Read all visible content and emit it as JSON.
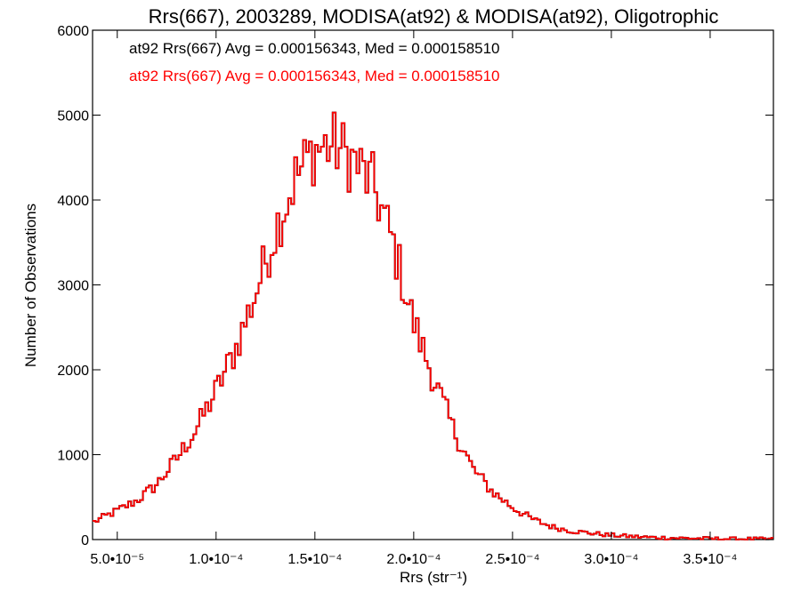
{
  "chart_data": {
    "type": "histogram",
    "title": "Rrs(667), 2003289, MODISA(at92) & MODISA(at92), Oligotrophic",
    "xlabel": "Rrs (str⁻¹)",
    "ylabel": "Number of Observations",
    "xlim": [
      3.75e-05,
      0.000382
    ],
    "ylim": [
      0,
      6000
    ],
    "x_ticks": [
      {
        "value": 5e-05,
        "label": "5.0•10⁻⁵"
      },
      {
        "value": 0.0001,
        "label": "1.0•10⁻⁴"
      },
      {
        "value": 0.00015,
        "label": "1.5•10⁻⁴"
      },
      {
        "value": 0.0002,
        "label": "2.0•10⁻⁴"
      },
      {
        "value": 0.00025,
        "label": "2.5•10⁻⁴"
      },
      {
        "value": 0.0003,
        "label": "3.0•10⁻⁴"
      },
      {
        "value": 0.00035,
        "label": "3.5•10⁻⁴"
      }
    ],
    "y_ticks": [
      {
        "value": 0,
        "label": "0"
      },
      {
        "value": 1000,
        "label": "1000"
      },
      {
        "value": 2000,
        "label": "2000"
      },
      {
        "value": 3000,
        "label": "3000"
      },
      {
        "value": 4000,
        "label": "4000"
      },
      {
        "value": 5000,
        "label": "5000"
      },
      {
        "value": 6000,
        "label": "6000"
      }
    ],
    "annotations": [
      {
        "text": "at92 Rrs(667) Avg = 0.000156343, Med = 0.000158510",
        "color": "#000000"
      },
      {
        "text": "at92 Rrs(667) Avg = 0.000156343, Med = 0.000158510",
        "color": "#ff0000"
      }
    ],
    "series": [
      {
        "color": "#000000",
        "curve": [
          [
            3.75e-05,
            200
          ],
          [
            5e-05,
            340
          ],
          [
            6e-05,
            460
          ],
          [
            7e-05,
            650
          ],
          [
            8e-05,
            950
          ],
          [
            9e-05,
            1300
          ],
          [
            0.0001,
            1750
          ],
          [
            0.00011,
            2250
          ],
          [
            0.00012,
            2900
          ],
          [
            0.00013,
            3650
          ],
          [
            0.00014,
            4250
          ],
          [
            0.00015,
            4600
          ],
          [
            0.00016,
            4650
          ],
          [
            0.00017,
            4450
          ],
          [
            0.00018,
            4150
          ],
          [
            0.00019,
            3450
          ],
          [
            0.0002,
            2550
          ],
          [
            0.00021,
            1900
          ],
          [
            0.00022,
            1300
          ],
          [
            0.00023,
            830
          ],
          [
            0.00024,
            560
          ],
          [
            0.00025,
            380
          ],
          [
            0.00026,
            240
          ],
          [
            0.00027,
            150
          ],
          [
            0.00028,
            100
          ],
          [
            0.0003,
            50
          ],
          [
            0.00032,
            25
          ],
          [
            0.00035,
            10
          ],
          [
            0.000382,
            5
          ]
        ]
      },
      {
        "color": "#ff0000",
        "curve": [
          [
            3.75e-05,
            200
          ],
          [
            5e-05,
            340
          ],
          [
            6e-05,
            460
          ],
          [
            7e-05,
            650
          ],
          [
            8e-05,
            950
          ],
          [
            9e-05,
            1300
          ],
          [
            0.0001,
            1750
          ],
          [
            0.00011,
            2250
          ],
          [
            0.00012,
            2900
          ],
          [
            0.00013,
            3650
          ],
          [
            0.00014,
            4250
          ],
          [
            0.00015,
            4600
          ],
          [
            0.00016,
            4650
          ],
          [
            0.00017,
            4450
          ],
          [
            0.00018,
            4150
          ],
          [
            0.00019,
            3450
          ],
          [
            0.0002,
            2550
          ],
          [
            0.00021,
            1900
          ],
          [
            0.00022,
            1300
          ],
          [
            0.00023,
            830
          ],
          [
            0.00024,
            560
          ],
          [
            0.00025,
            380
          ],
          [
            0.00026,
            240
          ],
          [
            0.00027,
            150
          ],
          [
            0.00028,
            100
          ],
          [
            0.0003,
            50
          ],
          [
            0.00032,
            25
          ],
          [
            0.00035,
            10
          ],
          [
            0.000382,
            5
          ]
        ]
      }
    ],
    "bin_width": 1.5e-06
  }
}
